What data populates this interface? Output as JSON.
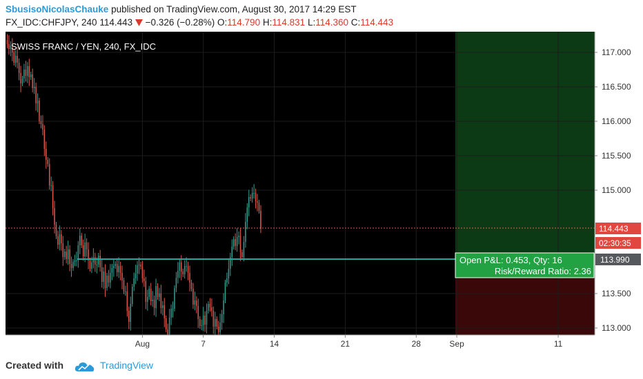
{
  "header": {
    "author": "SbusisoNicolasChauke",
    "published_text": "published on TradingView.com, August 30, 2017 14:29 EST",
    "symbol": "FX_IDC:CHFJPY, 240",
    "last_price": "114.443",
    "change": "−0.326 (−0.28%)",
    "o_label": "O:",
    "o_value": "114.790",
    "h_label": "H:",
    "h_value": "114.831",
    "l_label": "L:",
    "l_value": "114.360",
    "c_label": "C:",
    "c_value": "114.443"
  },
  "footer": {
    "created_with": "Created with",
    "brand": "TradingView"
  },
  "icons": {
    "down_arrow": "down-arrow-icon",
    "logo": "tradingview-cloud-icon"
  },
  "colors": {
    "background": "#000000",
    "up": "#33a092",
    "down": "#e0594f",
    "position_line": "#22a8a0",
    "profit_zone": "#0c3a14",
    "loss_zone": "#3a0808",
    "pnl_box": "#23a243",
    "price_tag": "#e0483f",
    "entry_tag": "#55595e",
    "axis_bg": "#ffffff",
    "axis_text": "#333333",
    "brand": "#2a9bd8"
  },
  "chart_data": {
    "type": "candlestick",
    "title": "SWISS FRANC / YEN, 240, FX_IDC",
    "ylim": [
      112.9,
      117.3
    ],
    "y_ticks": [
      "117.000",
      "116.500",
      "116.000",
      "115.500",
      "115.000",
      "113.500",
      "113.000"
    ],
    "x_ticks": [
      "Aug",
      "7",
      "14",
      "21",
      "28",
      "Sep",
      "11"
    ],
    "x_tick_days": [
      1,
      7,
      14,
      21,
      28,
      32,
      42
    ],
    "x_range_days": [
      -12.5,
      45.6
    ],
    "bars_per_day": 6,
    "close_series": [
      117.18,
      117.12,
      117.05,
      117.1,
      117.0,
      116.85,
      116.95,
      116.85,
      116.7,
      116.55,
      116.62,
      116.75,
      116.66,
      116.8,
      116.64,
      116.68,
      116.48,
      116.5,
      116.26,
      116.3,
      116.0,
      115.96,
      115.88,
      115.6,
      115.44,
      115.38,
      115.07,
      115.07,
      114.74,
      114.5,
      114.33,
      114.21,
      114.36,
      114.23,
      114.03,
      114.11,
      114.0,
      114.14,
      113.93,
      113.87,
      113.96,
      113.98,
      113.98,
      114.2,
      114.34,
      114.2,
      114.04,
      114.24,
      114.14,
      113.98,
      113.86,
      113.95,
      114.03,
      113.92,
      113.92,
      114.05,
      113.88,
      113.67,
      113.82,
      113.58,
      113.76,
      113.66,
      113.8,
      113.87,
      113.9,
      113.93,
      113.81,
      113.9,
      113.8,
      113.69,
      113.53,
      113.53,
      113.25,
      113.09,
      113.35,
      113.6,
      113.72,
      113.79,
      113.91,
      113.92,
      113.89,
      113.72,
      113.68,
      113.38,
      113.45,
      113.57,
      113.39,
      113.41,
      113.29,
      113.61,
      113.45,
      113.5,
      113.29,
      113.33,
      113.14,
      112.98,
      112.85,
      113.15,
      113.28,
      113.28,
      113.58,
      113.73,
      113.83,
      113.95,
      113.82,
      113.78,
      113.9,
      113.9,
      113.8,
      113.66,
      113.57,
      113.34,
      113.4,
      113.32,
      113.13,
      113.03,
      113.04,
      113.18,
      113.05,
      113.25,
      113.35,
      113.3,
      113.25,
      113.02,
      113.13,
      113.02,
      112.94,
      113.08,
      113.2,
      113.4,
      113.66,
      113.72,
      113.86,
      114.03,
      114.18,
      114.29,
      114.19,
      114.32,
      114.34,
      114.1,
      114.03,
      114.25,
      114.54,
      114.75,
      114.9,
      114.88,
      114.96,
      114.96,
      114.84,
      114.82,
      114.7,
      114.44
    ],
    "annotations": {
      "entry_price": "113.990",
      "last_price": "114.443",
      "countdown": "02:30:35",
      "pnl_line1": "Open P&L: 0.453, Qty: 16",
      "pnl_line2": "Risk/Reward Ratio: 2.36"
    }
  }
}
